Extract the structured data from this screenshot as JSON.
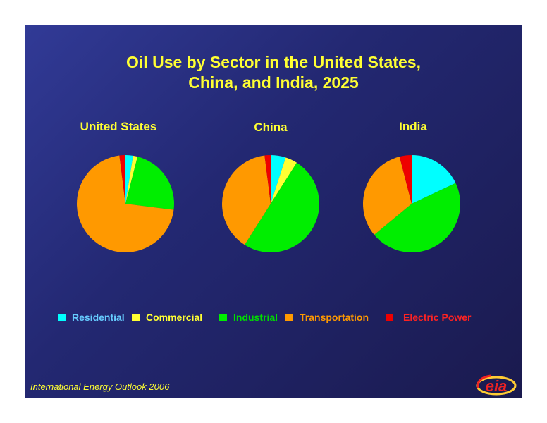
{
  "chart_data": [
    {
      "type": "pie",
      "title": "United States",
      "categories": [
        "Residential",
        "Commercial",
        "Industrial",
        "Transportation",
        "Electric Power"
      ],
      "values": [
        2.5,
        1.5,
        23,
        71,
        2
      ]
    },
    {
      "type": "pie",
      "title": "China",
      "categories": [
        "Residential",
        "Commercial",
        "Industrial",
        "Transportation",
        "Electric Power"
      ],
      "values": [
        5,
        4,
        50,
        39,
        2
      ]
    },
    {
      "type": "pie",
      "title": "India",
      "categories": [
        "Residential",
        "Commercial",
        "Industrial",
        "Transportation",
        "Electric Power"
      ],
      "values": [
        18,
        0,
        46,
        32,
        4
      ]
    }
  ],
  "slide": {
    "title_line1": "Oil Use by Sector in the United States,",
    "title_line2": "China, and India, 2025",
    "footer": "International Energy Outlook 2006",
    "logo_text": "eia"
  },
  "legend": [
    {
      "label": "Residential",
      "color": "#00ffff",
      "text_color": "#66ccff"
    },
    {
      "label": "Commercial",
      "color": "#ffff33",
      "text_color": "#ffff33"
    },
    {
      "label": "Industrial",
      "color": "#00ee00",
      "text_color": "#00dd00"
    },
    {
      "label": "Transportation",
      "color": "#ff9900",
      "text_color": "#ff9900"
    },
    {
      "label": "Electric Power",
      "color": "#ee0000",
      "text_color": "#ff2222"
    }
  ]
}
